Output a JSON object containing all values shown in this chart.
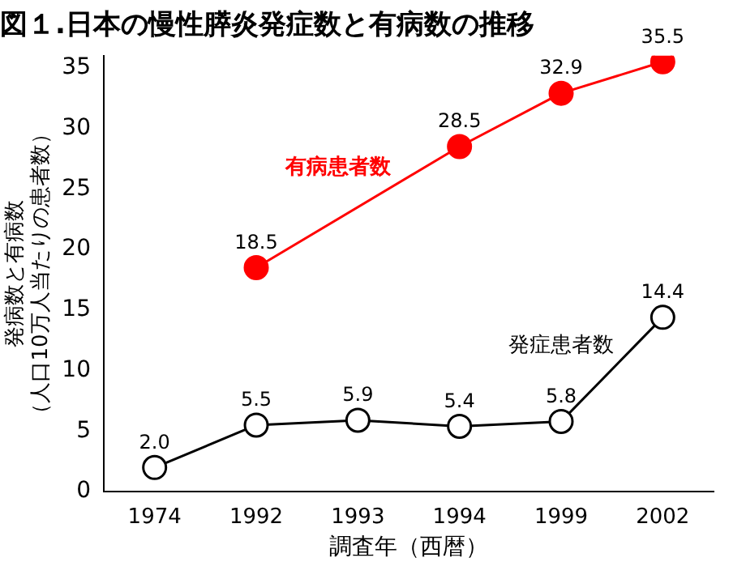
{
  "chart_data": {
    "type": "line",
    "title": "図１.日本の慢性膵炎発症数と有病数の推移",
    "xlabel": "調査年（西暦）",
    "ylabel": "発病数と有病数（人口10万人当たりの患者数）",
    "categories": [
      "1974",
      "1992",
      "1993",
      "1994",
      "1999",
      "2002"
    ],
    "series": [
      {
        "name": "有病患者数",
        "color": "#ff0000",
        "values": [
          null,
          18.5,
          null,
          28.5,
          32.9,
          35.5
        ],
        "value_labels": [
          null,
          "18.5",
          null,
          "28.5",
          "32.9",
          "35.5"
        ]
      },
      {
        "name": "発症患者数",
        "color": "#000000",
        "values": [
          2.0,
          5.5,
          5.9,
          5.4,
          5.8,
          14.4
        ],
        "value_labels": [
          "2.0",
          "5.5",
          "5.9",
          "5.4",
          "5.8",
          "14.4"
        ]
      }
    ],
    "ylim": [
      0,
      36
    ],
    "yticks": [
      0,
      5,
      10,
      15,
      20,
      25,
      30,
      35
    ],
    "grid": false,
    "legend": false,
    "marker": "circle",
    "line_style": "solid"
  }
}
